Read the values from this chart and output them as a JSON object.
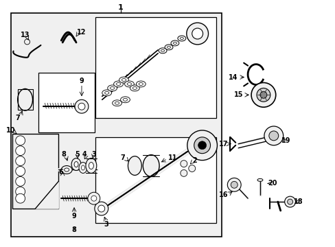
{
  "fig_w": 4.89,
  "fig_h": 3.6,
  "dpi": 100,
  "bg": "#f0f0f0",
  "white": "#ffffff",
  "dark": "#333333",
  "gray1": "#aaaaaa",
  "gray2": "#cccccc",
  "gray3": "#888888"
}
